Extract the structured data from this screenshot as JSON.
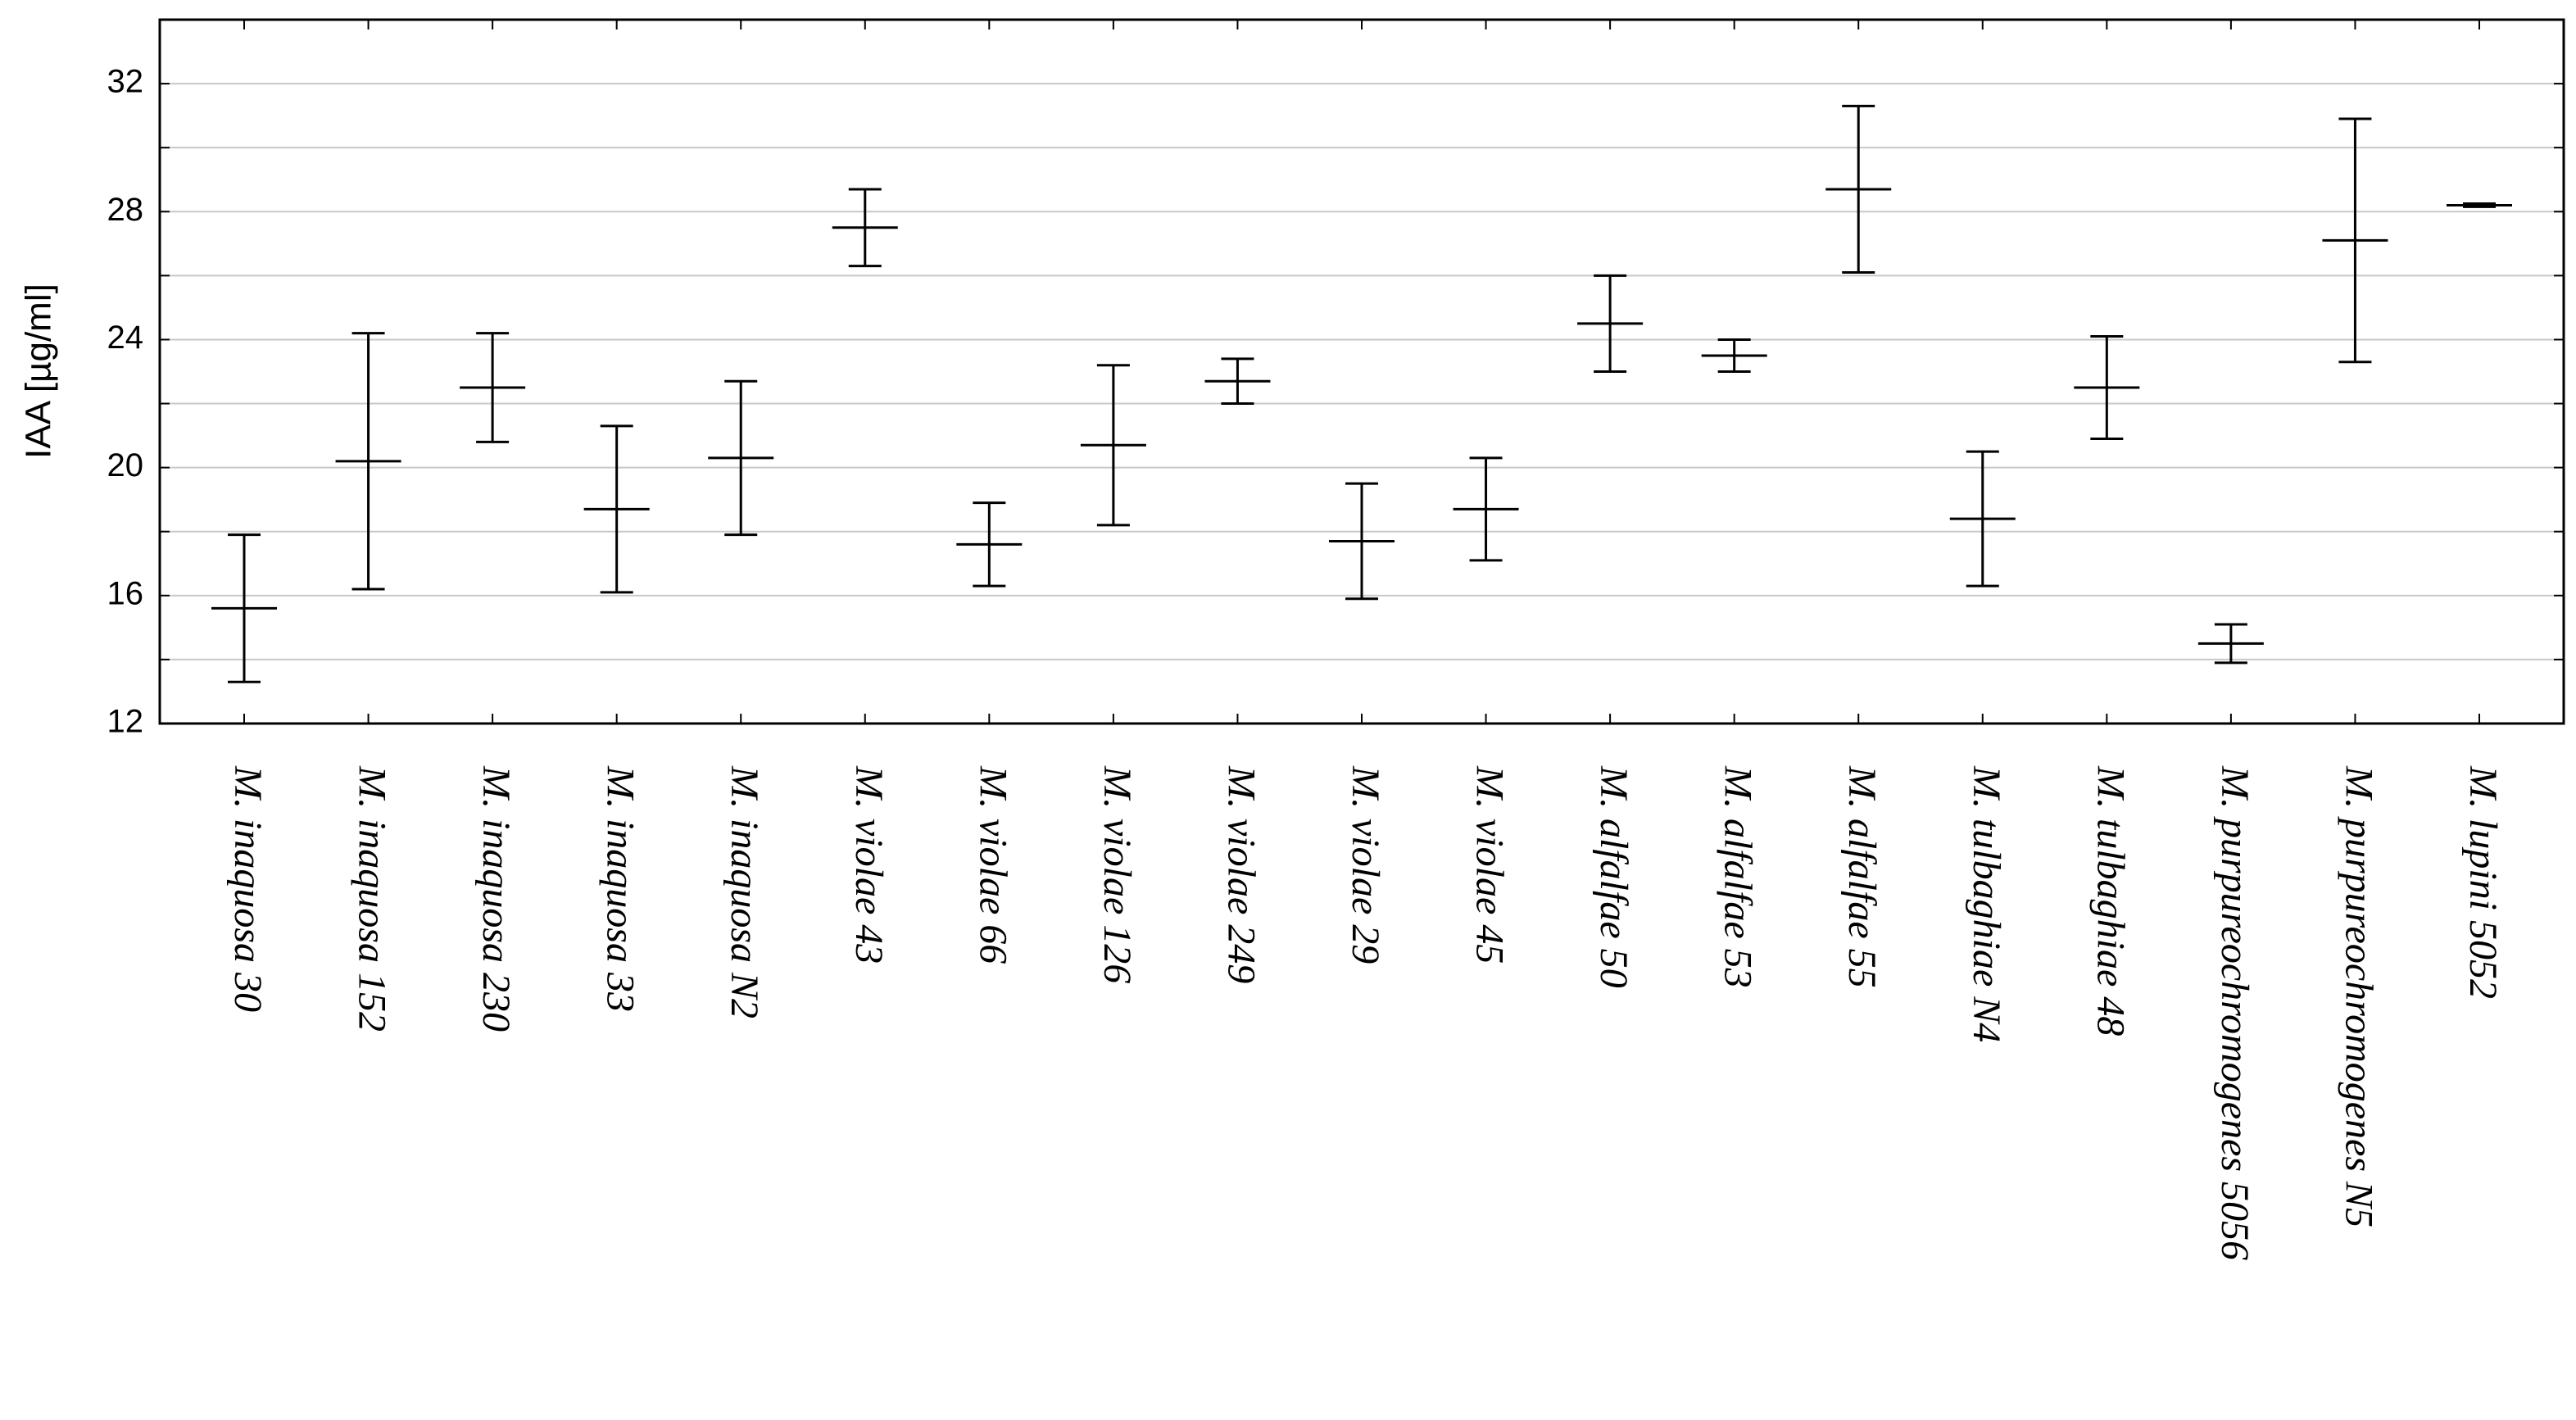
{
  "chart_data": {
    "type": "errorbar",
    "ylabel": "IAA [µg/ml]",
    "categories": [
      "M. inaquosa 30",
      "M. inaquosa 152",
      "M. inaquosa 230",
      "M. inaquosa 33",
      "M. inaquosa N2",
      "M. violae 43",
      "M. violae 66",
      "M. violae 126",
      "M. violae 249",
      "M. violae 29",
      "M. violae 45",
      "M. alfalfae 50",
      "M. alfalfae 53",
      "M. alfalfae 55",
      "M. tulbaghiae N4",
      "M. tulbaghiae 48",
      "M. purpureochromogenes 5056",
      "M. purpureochromogenes N5",
      "M. lupini 5052"
    ],
    "values": [
      15.6,
      20.2,
      22.5,
      18.7,
      20.3,
      27.5,
      17.6,
      20.7,
      22.7,
      17.7,
      18.7,
      24.5,
      23.5,
      28.7,
      18.4,
      22.5,
      14.5,
      27.1,
      28.2
    ],
    "errors": [
      2.3,
      4.0,
      1.7,
      2.6,
      2.4,
      1.2,
      1.3,
      2.5,
      0.7,
      1.8,
      1.6,
      1.5,
      0.5,
      2.6,
      2.1,
      1.6,
      0.6,
      3.8,
      0.05
    ],
    "color": "#000000",
    "ylim": [
      12,
      34
    ],
    "yticks": [
      12,
      16,
      20,
      24,
      28,
      32
    ],
    "minor_yticks": [
      14,
      18,
      22,
      26,
      30,
      34
    ],
    "grid": true
  }
}
